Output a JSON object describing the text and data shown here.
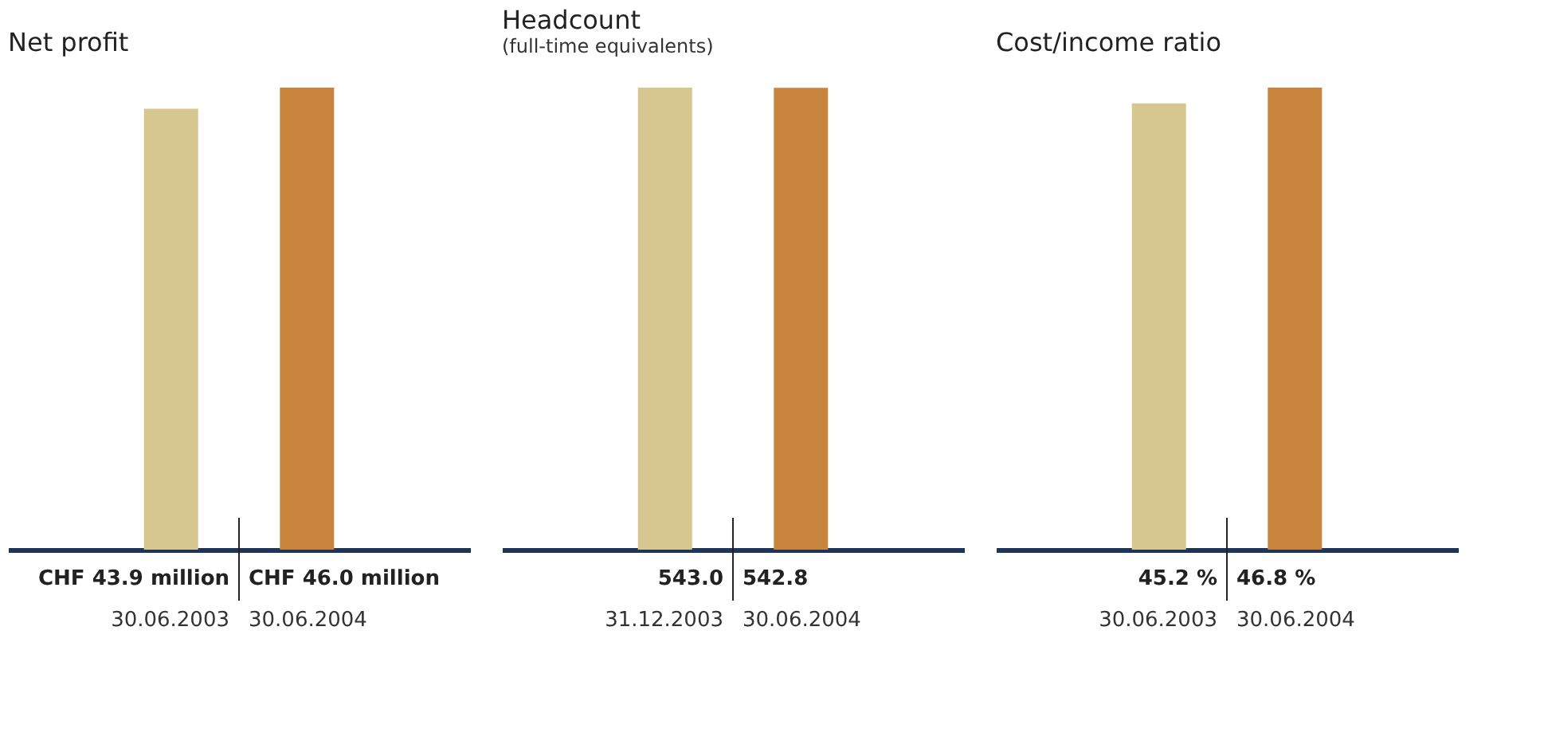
{
  "chart_data": [
    {
      "type": "bar",
      "title": "Net profit",
      "categories": [
        "30.06.2003",
        "30.06.2004"
      ],
      "values": [
        43900000,
        46000000
      ],
      "colors": [
        "#d6c690",
        "#c8843c"
      ],
      "value_labels": [
        "CHF 43.9 million",
        "CHF 46.0 million"
      ]
    },
    {
      "type": "bar",
      "title": "Headcount",
      "subtitle": "(full-time equivalents)",
      "categories": [
        "31.12.2003",
        "30.06.2004"
      ],
      "values": [
        543.0,
        542.8
      ],
      "colors": [
        "#d6c690",
        "#c8843c"
      ],
      "value_labels": [
        "543.0",
        "542.8"
      ]
    },
    {
      "type": "bar",
      "title": "Cost/income ratio",
      "categories": [
        "30.06.2003",
        "30.06.2004"
      ],
      "values": [
        45.2,
        46.8
      ],
      "colors": [
        "#d6c690",
        "#c8843c"
      ],
      "value_labels": [
        "45.2 %",
        "46.8 %"
      ]
    }
  ]
}
